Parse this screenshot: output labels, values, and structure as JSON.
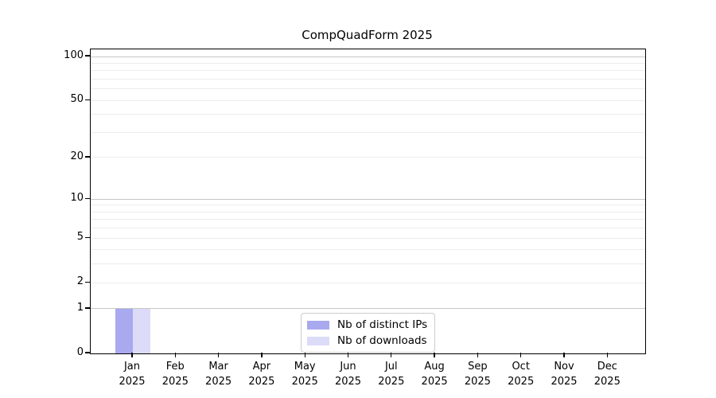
{
  "chart_data": {
    "type": "bar",
    "title": "CompQuadForm 2025",
    "months": [
      "Jan",
      "Feb",
      "Mar",
      "Apr",
      "May",
      "Jun",
      "Jul",
      "Aug",
      "Sep",
      "Oct",
      "Nov",
      "Dec"
    ],
    "year": "2025",
    "series": [
      {
        "name": "Nb of distinct IPs",
        "color": "#a9a9f0",
        "values": [
          1,
          0,
          0,
          0,
          0,
          0,
          0,
          0,
          0,
          0,
          0,
          0
        ]
      },
      {
        "name": "Nb of downloads",
        "color": "#dcdcf8",
        "values": [
          1,
          0,
          0,
          0,
          0,
          0,
          0,
          0,
          0,
          0,
          0,
          0
        ]
      }
    ],
    "xlabel": "",
    "ylabel": "",
    "yscale": "log1p",
    "ylim": [
      0,
      112
    ],
    "y_ticks": [
      0,
      1,
      2,
      5,
      10,
      20,
      50,
      100
    ],
    "y_major_gridlines": [
      1,
      10,
      100
    ],
    "y_minor_gridlines": [
      2,
      3,
      4,
      5,
      6,
      7,
      8,
      9,
      20,
      30,
      40,
      50,
      60,
      70,
      80,
      90
    ],
    "grid": "on",
    "legend_position": "inside-bottom-center"
  },
  "colors": {
    "grid_major": "#c6c6c6",
    "grid_minor": "#ececec",
    "axis": "#000000",
    "legend_border": "#cccccc",
    "background": "#ffffff"
  }
}
